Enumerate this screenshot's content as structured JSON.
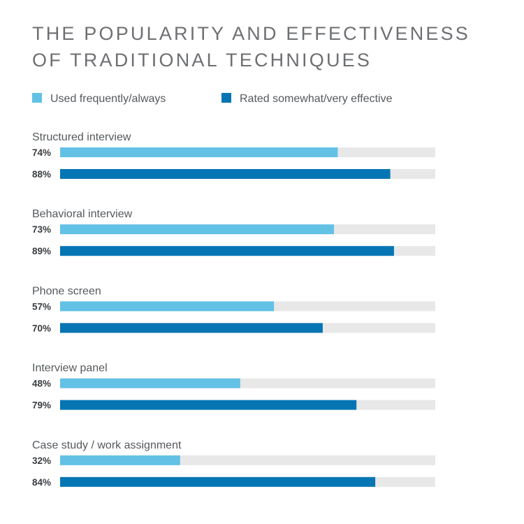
{
  "chart_data": {
    "type": "bar",
    "orientation": "horizontal",
    "title_lines": [
      "THE POPULARITY AND EFFECTIVENESS",
      "OF TRADITIONAL TECHNIQUES"
    ],
    "categories": [
      "Structured interview",
      "Behavioral interview",
      "Phone screen",
      "Interview panel",
      "Case study / work assignment"
    ],
    "series": [
      {
        "name": "Used frequently/always",
        "color": "#62c1e5",
        "values": [
          74,
          73,
          57,
          48,
          32
        ]
      },
      {
        "name": "Rated somewhat/very effective",
        "color": "#0575b4",
        "values": [
          88,
          89,
          70,
          79,
          84
        ]
      }
    ],
    "value_suffix": "%",
    "xlim": [
      0,
      100
    ],
    "track_color": "#e8e8e8",
    "legend_position": "top-left",
    "grid": false
  }
}
